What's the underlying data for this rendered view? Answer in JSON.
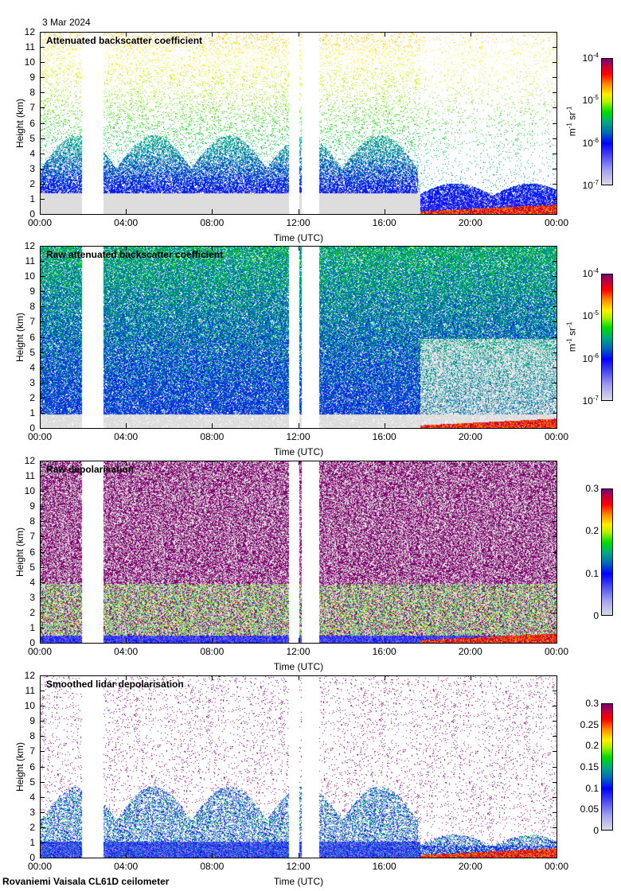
{
  "date": "3 Mar 2024",
  "footer": "Rovaniemi Vaisala CL61D ceilometer",
  "chart_data": [
    {
      "type": "heatmap",
      "title": "Attenuated backscatter coefficient",
      "xlabel": "Time (UTC)",
      "ylabel": "Height (km)",
      "xticks": [
        "00:00",
        "04:00",
        "08:00",
        "12:00",
        "16:00",
        "20:00",
        "00:00"
      ],
      "yticks": [
        "0",
        "1",
        "2",
        "3",
        "4",
        "5",
        "6",
        "7",
        "8",
        "9",
        "10",
        "11",
        "12"
      ],
      "xlim_hours": [
        0,
        24
      ],
      "ylim_km": [
        0,
        12
      ],
      "colorbar": {
        "scale": "log",
        "range": [
          1e-07,
          0.0001
        ],
        "ticks": [
          {
            "base": "10",
            "exp": "-7"
          },
          {
            "base": "10",
            "exp": "-6"
          },
          {
            "base": "10",
            "exp": "-5"
          },
          {
            "base": "10",
            "exp": "-4"
          }
        ],
        "unit_base": [
          "m",
          "sr"
        ],
        "unit_exp": [
          "-1",
          "-1"
        ]
      },
      "data_gaps_hours": [
        [
          1.9,
          2.9
        ],
        [
          11.5,
          12.0
        ],
        [
          12.1,
          12.9
        ]
      ],
      "kind": "backscatter"
    },
    {
      "type": "heatmap",
      "title": "Raw attenuated backscatter coefficient",
      "xlabel": "Time (UTC)",
      "ylabel": "Height (km)",
      "xticks": [
        "00:00",
        "04:00",
        "08:00",
        "12:00",
        "16:00",
        "20:00",
        "00:00"
      ],
      "yticks": [
        "0",
        "1",
        "2",
        "3",
        "4",
        "5",
        "6",
        "7",
        "8",
        "9",
        "10",
        "11",
        "12"
      ],
      "xlim_hours": [
        0,
        24
      ],
      "ylim_km": [
        0,
        12
      ],
      "colorbar": {
        "scale": "log",
        "range": [
          1e-07,
          0.0001
        ],
        "ticks": [
          {
            "base": "10",
            "exp": "-7"
          },
          {
            "base": "10",
            "exp": "-6"
          },
          {
            "base": "10",
            "exp": "-5"
          },
          {
            "base": "10",
            "exp": "-4"
          }
        ],
        "unit_base": [
          "m",
          "sr"
        ],
        "unit_exp": [
          "-1",
          "-1"
        ]
      },
      "data_gaps_hours": [
        [
          1.9,
          2.9
        ],
        [
          11.5,
          12.0
        ],
        [
          12.1,
          12.9
        ]
      ],
      "kind": "raw"
    },
    {
      "type": "heatmap",
      "title": "Raw depolarisation",
      "xlabel": "Time (UTC)",
      "ylabel": "Height (km)",
      "xticks": [
        "00:00",
        "04:00",
        "08:00",
        "12:00",
        "16:00",
        "20:00",
        "00:00"
      ],
      "yticks": [
        "0",
        "1",
        "2",
        "3",
        "4",
        "5",
        "6",
        "7",
        "8",
        "9",
        "10",
        "11",
        "12"
      ],
      "xlim_hours": [
        0,
        24
      ],
      "ylim_km": [
        0,
        12
      ],
      "colorbar": {
        "scale": "linear",
        "range": [
          0,
          0.3
        ],
        "ticks": [
          {
            "base": "0"
          },
          {
            "base": "0.1"
          },
          {
            "base": "0.2"
          },
          {
            "base": "0.3"
          }
        ]
      },
      "data_gaps_hours": [
        [
          1.9,
          2.9
        ],
        [
          11.5,
          12.0
        ],
        [
          12.1,
          12.9
        ]
      ],
      "kind": "depol"
    },
    {
      "type": "heatmap",
      "title": "Smoothed lidar depolarisation",
      "xlabel": "Time (UTC)",
      "ylabel": "Height (km)",
      "xticks": [
        "00:00",
        "04:00",
        "08:00",
        "12:00",
        "16:00",
        "20:00",
        "00:00"
      ],
      "yticks": [
        "0",
        "1",
        "2",
        "3",
        "4",
        "5",
        "6",
        "7",
        "8",
        "9",
        "10",
        "11",
        "12"
      ],
      "xlim_hours": [
        0,
        24
      ],
      "ylim_km": [
        0,
        12
      ],
      "colorbar": {
        "scale": "linear",
        "range": [
          0,
          0.3
        ],
        "ticks": [
          {
            "base": "0"
          },
          {
            "base": "0.05"
          },
          {
            "base": "0.1"
          },
          {
            "base": "0.15"
          },
          {
            "base": "0.2"
          },
          {
            "base": "0.25"
          },
          {
            "base": "0.3"
          }
        ]
      },
      "data_gaps_hours": [
        [
          1.9,
          2.9
        ],
        [
          11.5,
          12.0
        ],
        [
          12.1,
          12.9
        ]
      ],
      "kind": "smooth"
    }
  ]
}
